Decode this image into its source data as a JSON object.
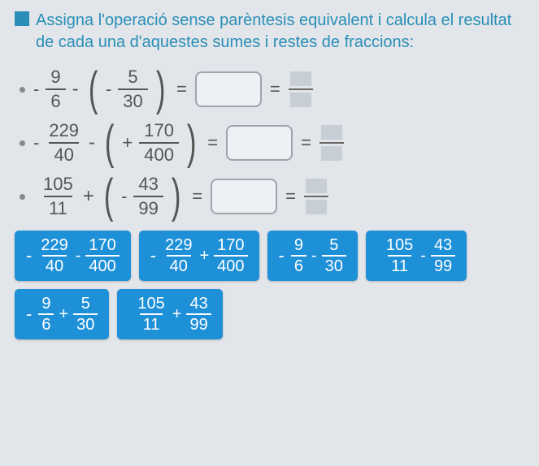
{
  "instruction": "Assigna l'operació sense parèntesis equivalent i calcula el resultat de cada una d'aquestes sumes i restes de fraccions:",
  "colors": {
    "accent": "#2a8fb8",
    "tile": "#1e90d8",
    "bg": "#e2e5e9"
  },
  "problems": [
    {
      "a_sign": "-",
      "a_num": "9",
      "a_den": "6",
      "outer_op": "-",
      "inner_sign": "-",
      "b_num": "5",
      "b_den": "30"
    },
    {
      "a_sign": "-",
      "a_num": "229",
      "a_den": "40",
      "outer_op": "-",
      "inner_sign": "+",
      "b_num": "170",
      "b_den": "400"
    },
    {
      "a_sign": "",
      "a_num": "105",
      "a_den": "11",
      "outer_op": "+",
      "inner_sign": "-",
      "b_num": "43",
      "b_den": "99"
    }
  ],
  "tiles": [
    {
      "a_sign": "-",
      "a_num": "229",
      "a_den": "40",
      "op": "-",
      "b_sign": "",
      "b_num": "170",
      "b_den": "400"
    },
    {
      "a_sign": "-",
      "a_num": "229",
      "a_den": "40",
      "op": "+",
      "b_sign": "",
      "b_num": "170",
      "b_den": "400"
    },
    {
      "a_sign": "-",
      "a_num": "9",
      "a_den": "6",
      "op": "-",
      "b_sign": "",
      "b_num": "5",
      "b_den": "30"
    },
    {
      "a_sign": "",
      "a_num": "105",
      "a_den": "11",
      "op": "-",
      "b_sign": "",
      "b_num": "43",
      "b_den": "99"
    },
    {
      "a_sign": "-",
      "a_num": "9",
      "a_den": "6",
      "op": "+",
      "b_sign": "",
      "b_num": "5",
      "b_den": "30"
    },
    {
      "a_sign": "",
      "a_num": "105",
      "a_den": "11",
      "op": "+",
      "b_sign": "",
      "b_num": "43",
      "b_den": "99"
    }
  ],
  "symbols": {
    "equals": "="
  }
}
